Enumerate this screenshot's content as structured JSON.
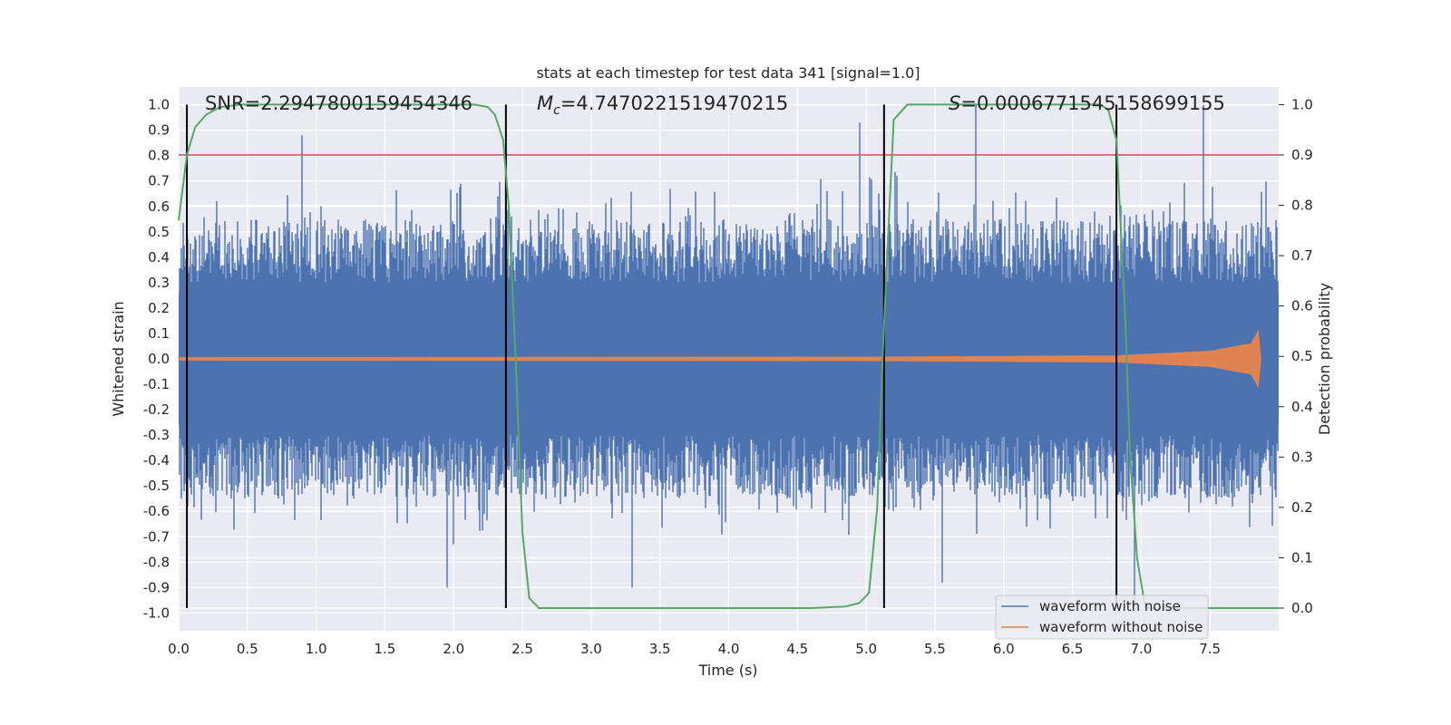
{
  "chart_data": {
    "type": "line",
    "title": "stats at each timestep for test data 341 [signal=1.0]",
    "xlabel": "Time (s)",
    "ylabel_left": "Whitened strain",
    "ylabel_right": "Detection probability",
    "xlim": [
      0,
      8.0
    ],
    "ylim_left": [
      -1.07,
      1.07
    ],
    "ylim_right": [
      -0.045,
      1.035
    ],
    "x_ticks": [
      "0.0",
      "0.5",
      "1.0",
      "1.5",
      "2.0",
      "2.5",
      "3.0",
      "3.5",
      "4.0",
      "4.5",
      "5.0",
      "5.5",
      "6.0",
      "6.5",
      "7.0",
      "7.5"
    ],
    "y_ticks_left": [
      "1.0",
      "0.9",
      "0.8",
      "0.7",
      "0.6",
      "0.5",
      "0.4",
      "0.3",
      "0.2",
      "0.1",
      "0.0",
      "-0.1",
      "-0.2",
      "-0.3",
      "-0.4",
      "-0.5",
      "-0.6",
      "-0.7",
      "-0.8",
      "-0.9",
      "-1.0"
    ],
    "y_ticks_right": [
      "1.0",
      "0.9",
      "0.8",
      "0.7",
      "0.6",
      "0.5",
      "0.4",
      "0.3",
      "0.2",
      "0.1",
      "0.0"
    ],
    "annotations": {
      "snr": "SNR=2.2947800159454346",
      "mc_symbol": "M",
      "mc_sub": "c",
      "mc_value": "=4.7470221519470215",
      "s_symbol": "S",
      "s_value": "=0.0006771545158699155"
    },
    "threshold": {
      "value": 0.9,
      "axis": "right",
      "color": "#c44e52"
    },
    "vertical_markers": [
      0.06,
      2.38,
      5.13,
      6.82
    ],
    "series": [
      {
        "name": "waveform with noise",
        "color": "#4c72b0",
        "axis": "left",
        "description_values": {
          "typical_band": [
            -0.45,
            0.45
          ],
          "spikes": [
            [
              0.9,
              0.88
            ],
            [
              1.95,
              -0.9
            ],
            [
              3.3,
              -0.9
            ],
            [
              4.95,
              0.93
            ],
            [
              5.8,
              1.0
            ],
            [
              7.45,
              1.0
            ],
            [
              6.95,
              -1.0
            ],
            [
              5.55,
              -0.88
            ]
          ]
        }
      },
      {
        "name": "waveform without noise",
        "color": "#dd8452",
        "axis": "left",
        "envelope": [
          [
            0,
            0.005
          ],
          [
            5.1,
            0.007
          ],
          [
            6.8,
            0.012
          ],
          [
            7.5,
            0.03
          ],
          [
            7.8,
            0.06
          ],
          [
            7.85,
            0.11
          ],
          [
            7.87,
            0.0
          ]
        ]
      },
      {
        "name": "detection probability",
        "color": "#55a868",
        "axis": "right",
        "points": [
          [
            0.0,
            0.77
          ],
          [
            0.06,
            0.9
          ],
          [
            0.12,
            0.955
          ],
          [
            0.2,
            0.98
          ],
          [
            0.3,
            0.995
          ],
          [
            0.45,
            1.0
          ],
          [
            2.15,
            1.0
          ],
          [
            2.25,
            0.995
          ],
          [
            2.3,
            0.98
          ],
          [
            2.36,
            0.93
          ],
          [
            2.4,
            0.8
          ],
          [
            2.45,
            0.5
          ],
          [
            2.5,
            0.15
          ],
          [
            2.55,
            0.02
          ],
          [
            2.62,
            0.0
          ],
          [
            4.6,
            0.0
          ],
          [
            4.85,
            0.003
          ],
          [
            4.95,
            0.01
          ],
          [
            5.02,
            0.03
          ],
          [
            5.08,
            0.2
          ],
          [
            5.12,
            0.5
          ],
          [
            5.17,
            0.8
          ],
          [
            5.2,
            0.97
          ],
          [
            5.3,
            1.0
          ],
          [
            6.7,
            1.0
          ],
          [
            6.76,
            0.99
          ],
          [
            6.82,
            0.93
          ],
          [
            6.88,
            0.6
          ],
          [
            6.92,
            0.3
          ],
          [
            6.97,
            0.1
          ],
          [
            7.03,
            0.0
          ],
          [
            8.0,
            0.0
          ]
        ]
      }
    ],
    "legend": {
      "location": "lower-right",
      "entries": [
        "waveform with noise",
        "waveform without noise"
      ]
    }
  },
  "colors": {
    "axes_bg": "#eaeaf2",
    "grid": "#ffffff",
    "noisy": "#4c72b0",
    "clean": "#dd8452",
    "prob": "#55a868",
    "threshold": "#c44e52",
    "marker": "#000000"
  }
}
